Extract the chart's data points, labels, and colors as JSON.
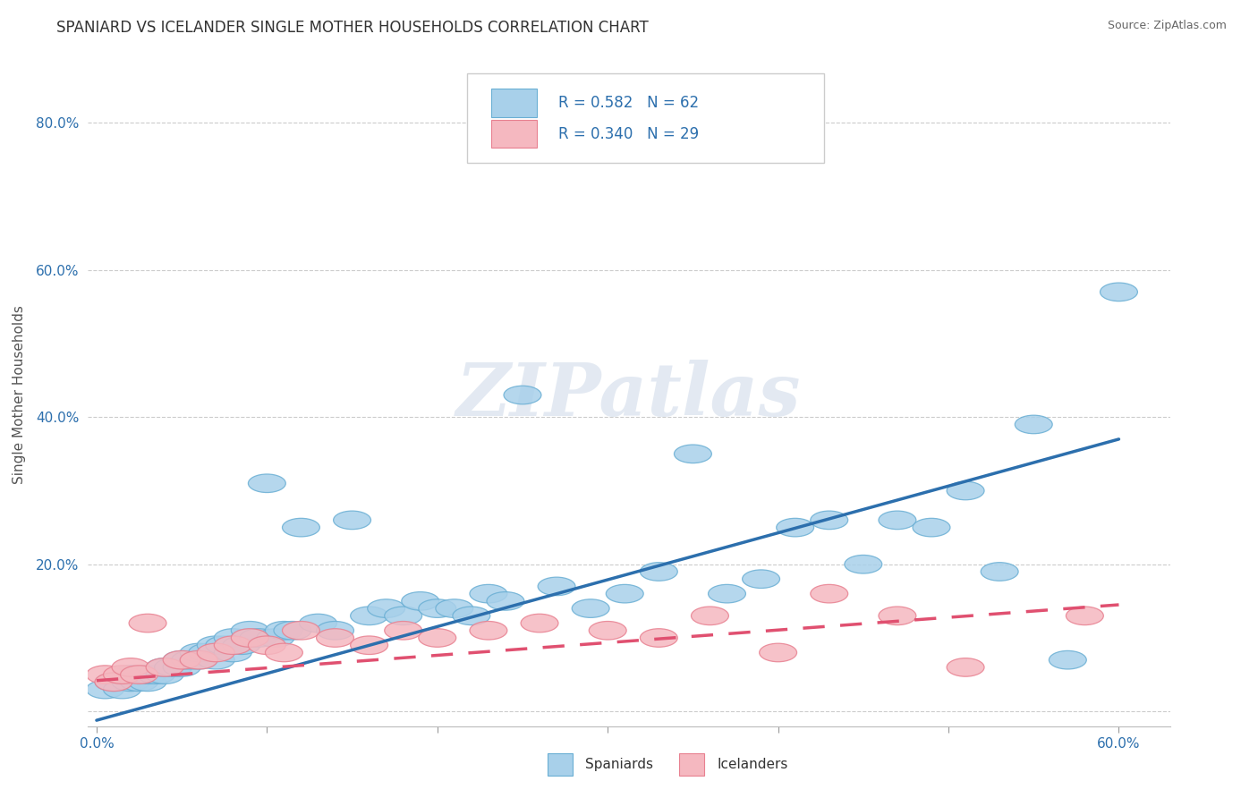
{
  "title": "SPANIARD VS ICELANDER SINGLE MOTHER HOUSEHOLDS CORRELATION CHART",
  "source": "Source: ZipAtlas.com",
  "ylabel": "Single Mother Households",
  "xlim": [
    -0.005,
    0.63
  ],
  "ylim": [
    -0.02,
    0.88
  ],
  "xticks": [
    0.0,
    0.1,
    0.2,
    0.3,
    0.4,
    0.5,
    0.6
  ],
  "xticklabels": [
    "0.0%",
    "",
    "",
    "",
    "",
    "",
    "60.0%"
  ],
  "yticks": [
    0.0,
    0.2,
    0.4,
    0.6,
    0.8
  ],
  "yticklabels": [
    "",
    "20.0%",
    "40.0%",
    "60.0%",
    "80.0%"
  ],
  "blue_color": "#a8d0ea",
  "blue_edge_color": "#6aafd4",
  "pink_color": "#f5b8c0",
  "pink_edge_color": "#e88090",
  "blue_line_color": "#2c6fad",
  "pink_line_color": "#e05070",
  "watermark": "ZIPatlas",
  "blue_line_x0": 0.0,
  "blue_line_y0": -0.012,
  "blue_line_x1": 0.6,
  "blue_line_y1": 0.37,
  "pink_line_x0": 0.0,
  "pink_line_y0": 0.042,
  "pink_line_x1": 0.6,
  "pink_line_y1": 0.145,
  "blue_scatter_x": [
    0.005,
    0.01,
    0.015,
    0.02,
    0.02,
    0.025,
    0.03,
    0.03,
    0.035,
    0.04,
    0.04,
    0.045,
    0.05,
    0.05,
    0.055,
    0.06,
    0.06,
    0.065,
    0.07,
    0.07,
    0.075,
    0.08,
    0.08,
    0.085,
    0.09,
    0.09,
    0.095,
    0.1,
    0.105,
    0.11,
    0.115,
    0.12,
    0.13,
    0.14,
    0.15,
    0.16,
    0.17,
    0.18,
    0.19,
    0.2,
    0.21,
    0.22,
    0.23,
    0.24,
    0.25,
    0.27,
    0.29,
    0.31,
    0.33,
    0.35,
    0.37,
    0.39,
    0.41,
    0.43,
    0.45,
    0.47,
    0.49,
    0.51,
    0.53,
    0.55,
    0.57,
    0.6
  ],
  "blue_scatter_y": [
    0.03,
    0.04,
    0.03,
    0.05,
    0.04,
    0.04,
    0.04,
    0.05,
    0.05,
    0.05,
    0.06,
    0.06,
    0.06,
    0.07,
    0.07,
    0.07,
    0.08,
    0.08,
    0.07,
    0.09,
    0.09,
    0.08,
    0.1,
    0.09,
    0.1,
    0.11,
    0.1,
    0.31,
    0.1,
    0.11,
    0.11,
    0.25,
    0.12,
    0.11,
    0.26,
    0.13,
    0.14,
    0.13,
    0.15,
    0.14,
    0.14,
    0.13,
    0.16,
    0.15,
    0.43,
    0.17,
    0.14,
    0.16,
    0.19,
    0.35,
    0.16,
    0.18,
    0.25,
    0.26,
    0.2,
    0.26,
    0.25,
    0.3,
    0.19,
    0.39,
    0.07,
    0.57
  ],
  "pink_scatter_x": [
    0.005,
    0.01,
    0.015,
    0.02,
    0.025,
    0.03,
    0.04,
    0.05,
    0.06,
    0.07,
    0.08,
    0.09,
    0.1,
    0.11,
    0.12,
    0.14,
    0.16,
    0.18,
    0.2,
    0.23,
    0.26,
    0.3,
    0.33,
    0.36,
    0.4,
    0.43,
    0.47,
    0.51,
    0.58
  ],
  "pink_scatter_y": [
    0.05,
    0.04,
    0.05,
    0.06,
    0.05,
    0.12,
    0.06,
    0.07,
    0.07,
    0.08,
    0.09,
    0.1,
    0.09,
    0.08,
    0.11,
    0.1,
    0.09,
    0.11,
    0.1,
    0.11,
    0.12,
    0.11,
    0.1,
    0.13,
    0.08,
    0.16,
    0.13,
    0.06,
    0.13
  ]
}
